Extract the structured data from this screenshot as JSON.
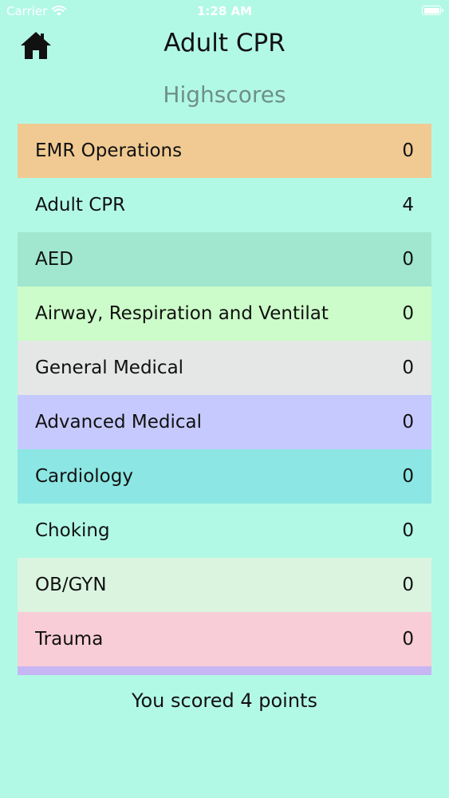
{
  "status_bar": {
    "carrier": "Carrier",
    "time": "1:28 AM",
    "battery_level": 1.0,
    "icons": [
      "wifi-icon",
      "battery-icon"
    ]
  },
  "header": {
    "title": "Adult CPR",
    "home_icon": "home-icon"
  },
  "section": {
    "heading": "Highscores"
  },
  "scores": [
    {
      "label": "EMR Operations",
      "value": "0",
      "color": "#f0ca92"
    },
    {
      "label": "Adult CPR",
      "value": "4",
      "color": "#b2f9e5"
    },
    {
      "label": "AED",
      "value": "0",
      "color": "#a1e6cf"
    },
    {
      "label": "Airway, Respiration and Ventilat",
      "value": "0",
      "color": "#ccfcc9"
    },
    {
      "label": "General Medical",
      "value": "0",
      "color": "#e4e7e5"
    },
    {
      "label": "Advanced Medical",
      "value": "0",
      "color": "#c6c9fd"
    },
    {
      "label": "Cardiology",
      "value": "0",
      "color": "#8ce6e3"
    },
    {
      "label": "Choking",
      "value": "0",
      "color": "#b2f9e5"
    },
    {
      "label": "OB/GYN",
      "value": "0",
      "color": "#dbf4e0"
    },
    {
      "label": "Trauma",
      "value": "0",
      "color": "#f8cdd7"
    },
    {
      "label": "",
      "value": "",
      "color": "#c7b6f3"
    }
  ],
  "summary": {
    "text": "You scored 4 points"
  }
}
